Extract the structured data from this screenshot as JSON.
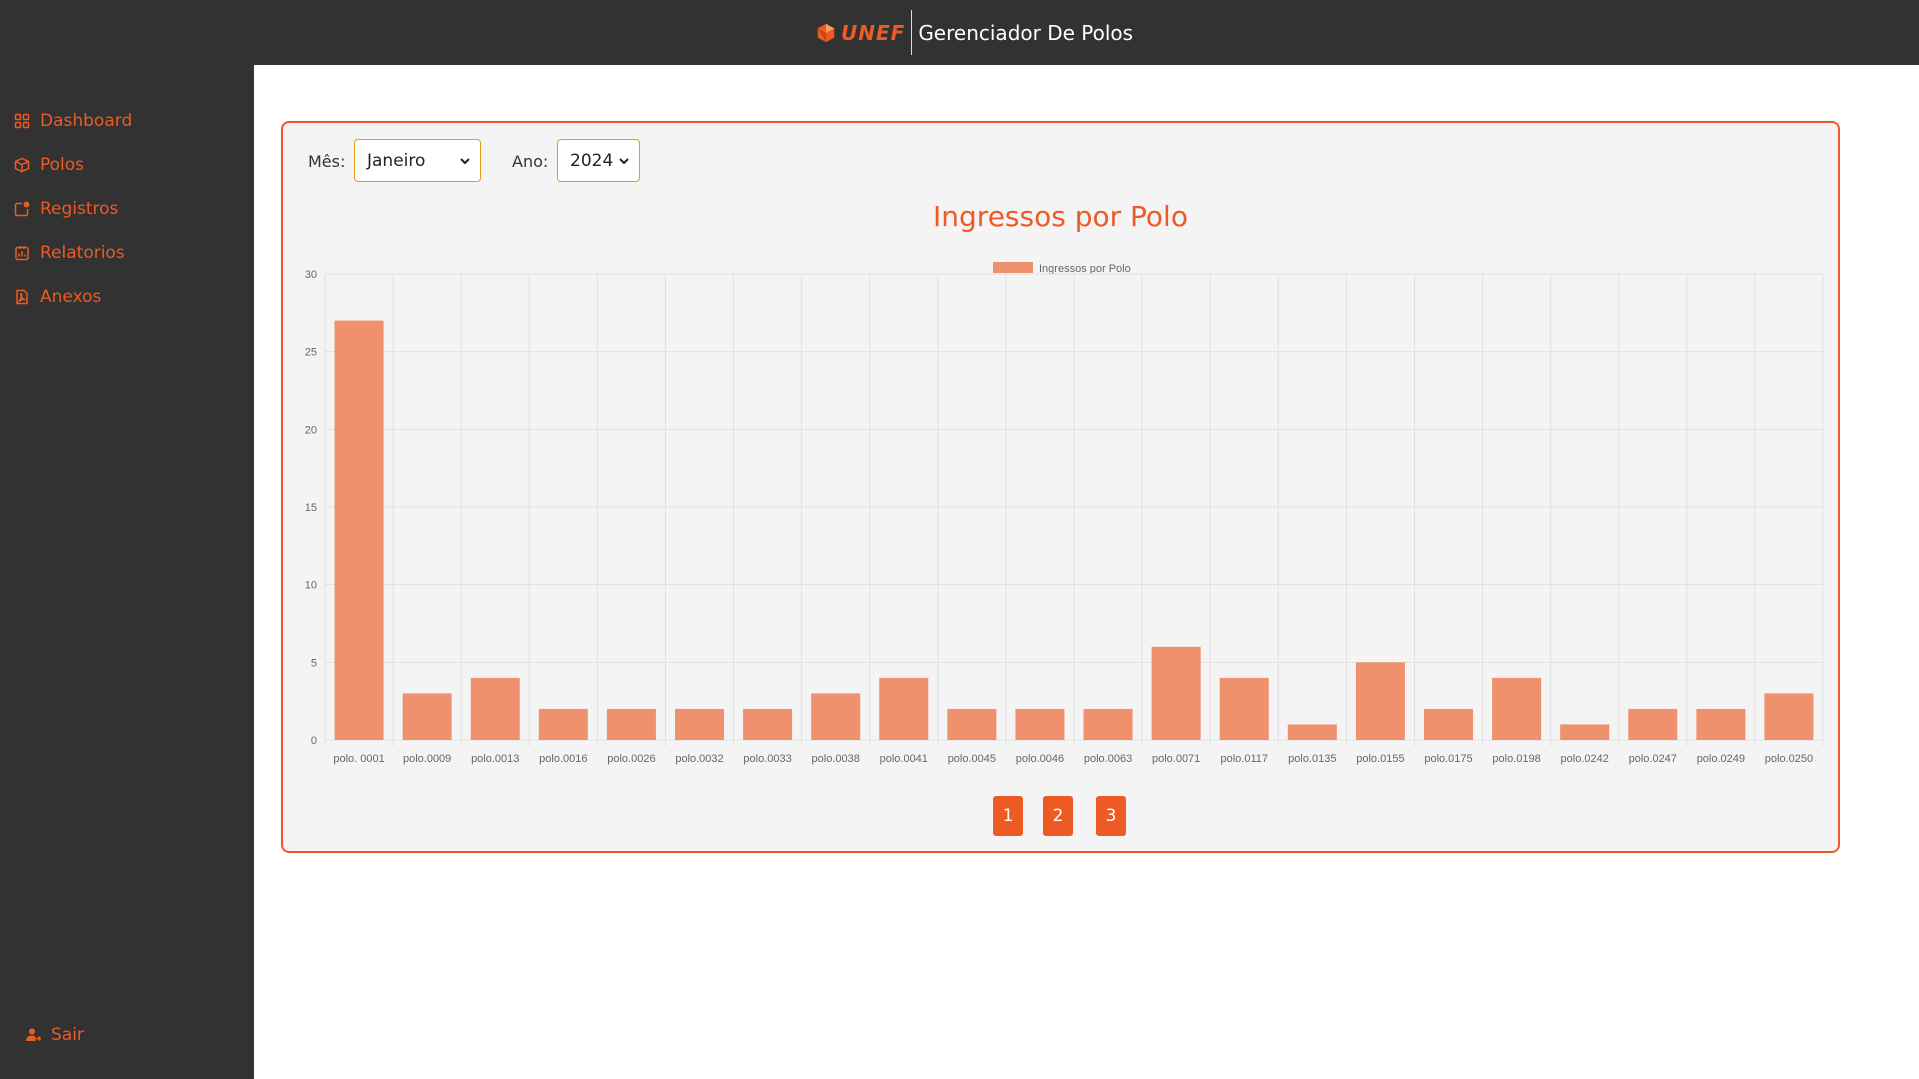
{
  "header": {
    "logo_text": "UNEF",
    "app_title": "Gerenciador De Polos",
    "brand_color": "#ee5a24"
  },
  "sidebar": {
    "items": [
      {
        "label": "Dashboard",
        "icon": "grid-icon"
      },
      {
        "label": "Polos",
        "icon": "box-icon"
      },
      {
        "label": "Registros",
        "icon": "notification-icon"
      },
      {
        "label": "Relatorios",
        "icon": "report-icon"
      },
      {
        "label": "Anexos",
        "icon": "pdf-file-icon"
      }
    ],
    "logout_label": "Sair"
  },
  "filters": {
    "month_label": "Mês:",
    "month_value": "Janeiro",
    "year_label": "Ano:",
    "year_value": "2024"
  },
  "chart_data": {
    "type": "bar",
    "title": "Ingressos por Polo",
    "legend": [
      "Ingressos por Polo"
    ],
    "legend_position": "top",
    "categories": [
      "polo. 0001",
      "polo.0009",
      "polo.0013",
      "polo.0016",
      "polo.0026",
      "polo.0032",
      "polo.0033",
      "polo.0038",
      "polo.0041",
      "polo.0045",
      "polo.0046",
      "polo.0063",
      "polo.0071",
      "polo.0117",
      "polo.0135",
      "polo.0155",
      "polo.0175",
      "polo.0198",
      "polo.0242",
      "polo.0247",
      "polo.0249",
      "polo.0250"
    ],
    "series": [
      {
        "name": "Ingressos por Polo",
        "values": [
          27,
          3,
          4,
          2,
          2,
          2,
          2,
          3,
          4,
          2,
          2,
          2,
          6,
          4,
          1,
          5,
          2,
          4,
          1,
          2,
          2,
          3
        ],
        "color": "#f0916e"
      }
    ],
    "ylim": [
      0,
      30
    ],
    "yticks": [
      0,
      5,
      10,
      15,
      20,
      25,
      30
    ],
    "grid": true
  },
  "pagination": {
    "pages": [
      "1",
      "2",
      "3"
    ]
  }
}
